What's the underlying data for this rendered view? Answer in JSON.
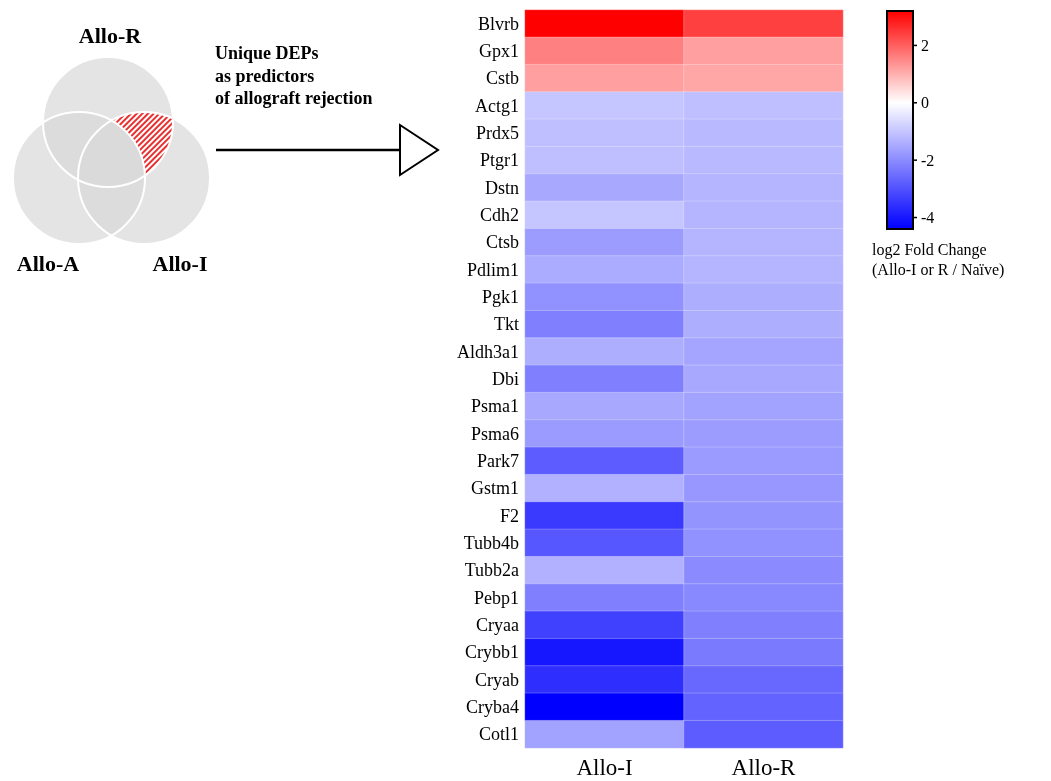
{
  "chart_data": {
    "type": "heatmap",
    "categories": [
      "Allo-I",
      "Allo-R"
    ],
    "y_categories": [
      "Blvrb",
      "Gpx1",
      "Cstb",
      "Actg1",
      "Prdx5",
      "Ptgr1",
      "Dstn",
      "Cdh2",
      "Ctsb",
      "Pdlim1",
      "Pgk1",
      "Tkt",
      "Aldh3a1",
      "Dbi",
      "Psma1",
      "Psma6",
      "Park7",
      "Gstm1",
      "F2",
      "Tubb4b",
      "Tubb2a",
      "Pebp1",
      "Cryaa",
      "Crybb1",
      "Cryab",
      "Cryba4",
      "Cotl1"
    ],
    "cells": [
      [
        3.2,
        2.4
      ],
      [
        1.6,
        1.2
      ],
      [
        1.2,
        1.1
      ],
      [
        -1.0,
        -1.1
      ],
      [
        -1.1,
        -1.2
      ],
      [
        -1.1,
        -1.2
      ],
      [
        -1.5,
        -1.3
      ],
      [
        -1.0,
        -1.3
      ],
      [
        -1.7,
        -1.3
      ],
      [
        -1.45,
        -1.3
      ],
      [
        -1.9,
        -1.4
      ],
      [
        -2.2,
        -1.4
      ],
      [
        -1.4,
        -1.55
      ],
      [
        -2.2,
        -1.5
      ],
      [
        -1.5,
        -1.6
      ],
      [
        -1.75,
        -1.7
      ],
      [
        -2.8,
        -1.75
      ],
      [
        -1.35,
        -1.8
      ],
      [
        -3.4,
        -1.85
      ],
      [
        -2.9,
        -1.9
      ],
      [
        -1.35,
        -2.0
      ],
      [
        -2.2,
        -2.05
      ],
      [
        -3.3,
        -2.2
      ],
      [
        -4.0,
        -2.3
      ],
      [
        -3.6,
        -2.6
      ],
      [
        -4.4,
        -2.7
      ],
      [
        -1.6,
        -2.8
      ]
    ],
    "clim": [
      -4.4,
      3.2
    ],
    "cticks": [
      -4,
      -2,
      0,
      2
    ],
    "clabel": "log2 Fold Change\n(Allo-I or R / Naïve)",
    "annotations": [
      "Allo-R",
      "Allo-A",
      "Allo-I",
      "Unique DEPs\nas predictors\nof allograft rejection"
    ]
  }
}
